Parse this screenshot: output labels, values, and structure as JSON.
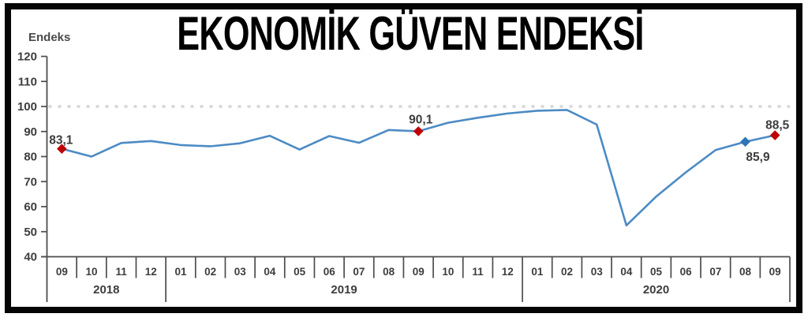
{
  "chart_data": {
    "type": "line",
    "title": "EKONOMİK GÜVEN ENDEKSİ",
    "ylabel": "Endeks",
    "ylim": [
      40,
      120
    ],
    "yticks": [
      120,
      110,
      100,
      90,
      80,
      70,
      60,
      50,
      40
    ],
    "grid": false,
    "reference_line": {
      "value": 100,
      "style": "dotted"
    },
    "legend": "none",
    "categories": [
      "2018-09",
      "2018-10",
      "2018-11",
      "2018-12",
      "2019-01",
      "2019-02",
      "2019-03",
      "2019-04",
      "2019-05",
      "2019-06",
      "2019-07",
      "2019-08",
      "2019-09",
      "2019-10",
      "2019-11",
      "2019-12",
      "2020-01",
      "2020-02",
      "2020-03",
      "2020-04",
      "2020-05",
      "2020-06",
      "2020-07",
      "2020-08",
      "2020-09"
    ],
    "month_tick_labels": [
      "09",
      "10",
      "11",
      "12",
      "01",
      "02",
      "03",
      "04",
      "05",
      "06",
      "07",
      "08",
      "09",
      "10",
      "11",
      "12",
      "01",
      "02",
      "03",
      "04",
      "05",
      "06",
      "07",
      "08",
      "09"
    ],
    "year_groups": [
      {
        "label": "2018",
        "span": 4
      },
      {
        "label": "2019",
        "span": 12
      },
      {
        "label": "2020",
        "span": 9
      }
    ],
    "series": [
      {
        "name": "Ekonomik Güven Endeksi",
        "color": "#4c8bc4",
        "values": [
          83.1,
          80.0,
          85.4,
          86.2,
          84.6,
          84.1,
          85.3,
          88.3,
          82.8,
          88.2,
          85.5,
          90.6,
          90.1,
          93.5,
          95.5,
          97.2,
          98.3,
          98.6,
          92.8,
          52.5,
          64.0,
          73.7,
          82.6,
          85.9,
          88.5
        ]
      }
    ],
    "annotated_points": [
      {
        "category": "2018-09",
        "index": 0,
        "value": 83.1,
        "label": "83,1",
        "marker": "diamond",
        "marker_color": "#c00000",
        "label_position": "above"
      },
      {
        "category": "2019-09",
        "index": 12,
        "value": 90.1,
        "label": "90,1",
        "marker": "diamond",
        "marker_color": "#c00000",
        "label_position": "above"
      },
      {
        "category": "2020-08",
        "index": 23,
        "value": 85.9,
        "label": "85,9",
        "marker": "diamond",
        "marker_color": "#2e75b6",
        "label_position": "below"
      },
      {
        "category": "2020-09",
        "index": 24,
        "value": 88.5,
        "label": "88,5",
        "marker": "diamond",
        "marker_color": "#c00000",
        "label_position": "above"
      }
    ],
    "colors": {
      "line": "#4c8bc4",
      "marker_red": "#c00000",
      "marker_blue": "#2e75b6",
      "axis": "#4d4d4d",
      "text": "#3d3d3d",
      "reference": "#d6d6d6",
      "frame": "#050505"
    }
  }
}
